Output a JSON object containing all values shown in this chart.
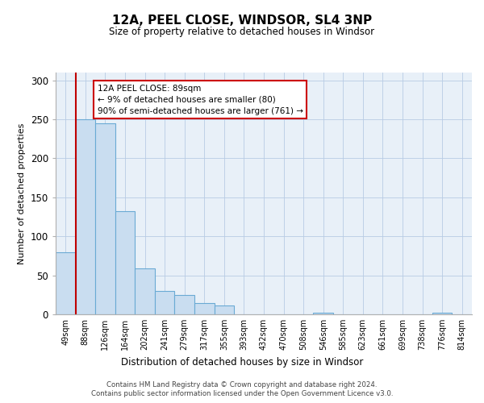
{
  "title": "12A, PEEL CLOSE, WINDSOR, SL4 3NP",
  "subtitle": "Size of property relative to detached houses in Windsor",
  "xlabel": "Distribution of detached houses by size in Windsor",
  "ylabel": "Number of detached properties",
  "bar_labels": [
    "49sqm",
    "88sqm",
    "126sqm",
    "164sqm",
    "202sqm",
    "241sqm",
    "279sqm",
    "317sqm",
    "355sqm",
    "393sqm",
    "432sqm",
    "470sqm",
    "508sqm",
    "546sqm",
    "585sqm",
    "623sqm",
    "661sqm",
    "699sqm",
    "738sqm",
    "776sqm",
    "814sqm"
  ],
  "bar_values": [
    80,
    250,
    245,
    132,
    59,
    30,
    25,
    14,
    11,
    0,
    0,
    0,
    0,
    2,
    0,
    0,
    0,
    0,
    0,
    2,
    0
  ],
  "bar_color": "#c9ddf0",
  "bar_edge_color": "#6aaad4",
  "property_line_color": "#c00000",
  "ylim": [
    0,
    310
  ],
  "yticks": [
    0,
    50,
    100,
    150,
    200,
    250,
    300
  ],
  "annotation_title": "12A PEEL CLOSE: 89sqm",
  "annotation_line1": "← 9% of detached houses are smaller (80)",
  "annotation_line2": "90% of semi-detached houses are larger (761) →",
  "annotation_box_color": "#ffffff",
  "annotation_box_edge": "#cc0000",
  "footer_line1": "Contains HM Land Registry data © Crown copyright and database right 2024.",
  "footer_line2": "Contains public sector information licensed under the Open Government Licence v3.0.",
  "bg_color": "#e8f0f8"
}
